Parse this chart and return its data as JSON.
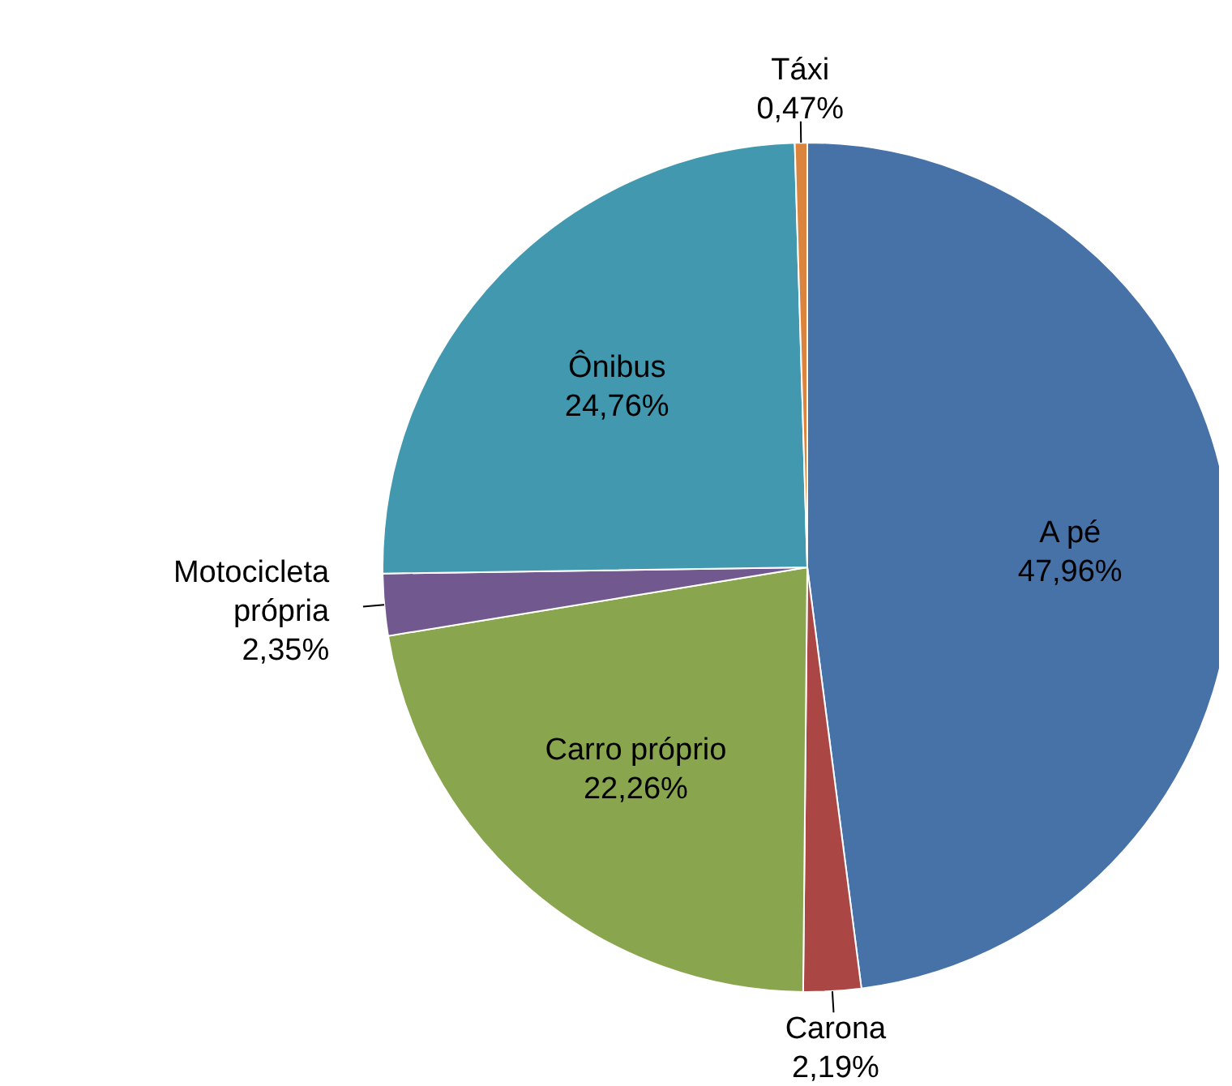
{
  "chart_data": {
    "type": "pie",
    "categories": [
      "A pé",
      "Carona",
      "Carro próprio",
      "Motocicleta própria",
      "Ônibus",
      "Táxi"
    ],
    "values": [
      47.96,
      2.19,
      22.26,
      2.35,
      24.76,
      0.47
    ],
    "colors": [
      "#4672a8",
      "#aa4643",
      "#89a54e",
      "#71588f",
      "#4198af",
      "#db843d"
    ],
    "value_labels": [
      "47,96%",
      "2,19%",
      "22,26%",
      "2,35%",
      "24,76%",
      "0,47%"
    ]
  }
}
